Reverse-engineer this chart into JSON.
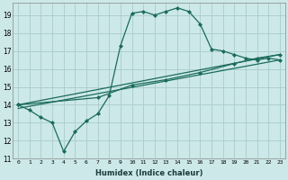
{
  "xlabel": "Humidex (Indice chaleur)",
  "ylabel": "",
  "xlim": [
    -0.5,
    23.5
  ],
  "ylim": [
    11,
    19.7
  ],
  "yticks": [
    11,
    12,
    13,
    14,
    15,
    16,
    17,
    18,
    19
  ],
  "xticks": [
    0,
    1,
    2,
    3,
    4,
    5,
    6,
    7,
    8,
    9,
    10,
    11,
    12,
    13,
    14,
    15,
    16,
    17,
    18,
    19,
    20,
    21,
    22,
    23
  ],
  "bg_color": "#cce8e8",
  "grid_color": "#aacccc",
  "line_color": "#1a6b5a",
  "lines": [
    {
      "x": [
        0,
        1,
        2,
        3,
        4,
        5,
        6,
        7,
        8,
        9,
        10,
        11,
        12,
        13,
        14,
        15,
        16,
        17,
        18,
        19,
        20,
        21,
        22,
        23
      ],
      "y": [
        14.0,
        13.7,
        13.3,
        13.0,
        11.4,
        12.5,
        13.1,
        13.5,
        14.5,
        17.3,
        19.1,
        19.2,
        19.0,
        19.2,
        19.4,
        19.2,
        18.5,
        17.1,
        17.0,
        16.8,
        16.6,
        16.5,
        16.6,
        16.5
      ],
      "marker": "D",
      "markersize": 2.0,
      "lw": 0.9
    },
    {
      "x": [
        0,
        23
      ],
      "y": [
        13.8,
        16.5
      ],
      "marker": null,
      "markersize": 0,
      "lw": 0.9
    },
    {
      "x": [
        0,
        23
      ],
      "y": [
        14.0,
        16.8
      ],
      "marker": null,
      "markersize": 0,
      "lw": 0.9
    },
    {
      "x": [
        0,
        7,
        10,
        13,
        16,
        19,
        21,
        23
      ],
      "y": [
        14.0,
        14.4,
        15.1,
        15.4,
        15.8,
        16.3,
        16.6,
        16.8
      ],
      "marker": "D",
      "markersize": 2.0,
      "lw": 0.9
    }
  ]
}
